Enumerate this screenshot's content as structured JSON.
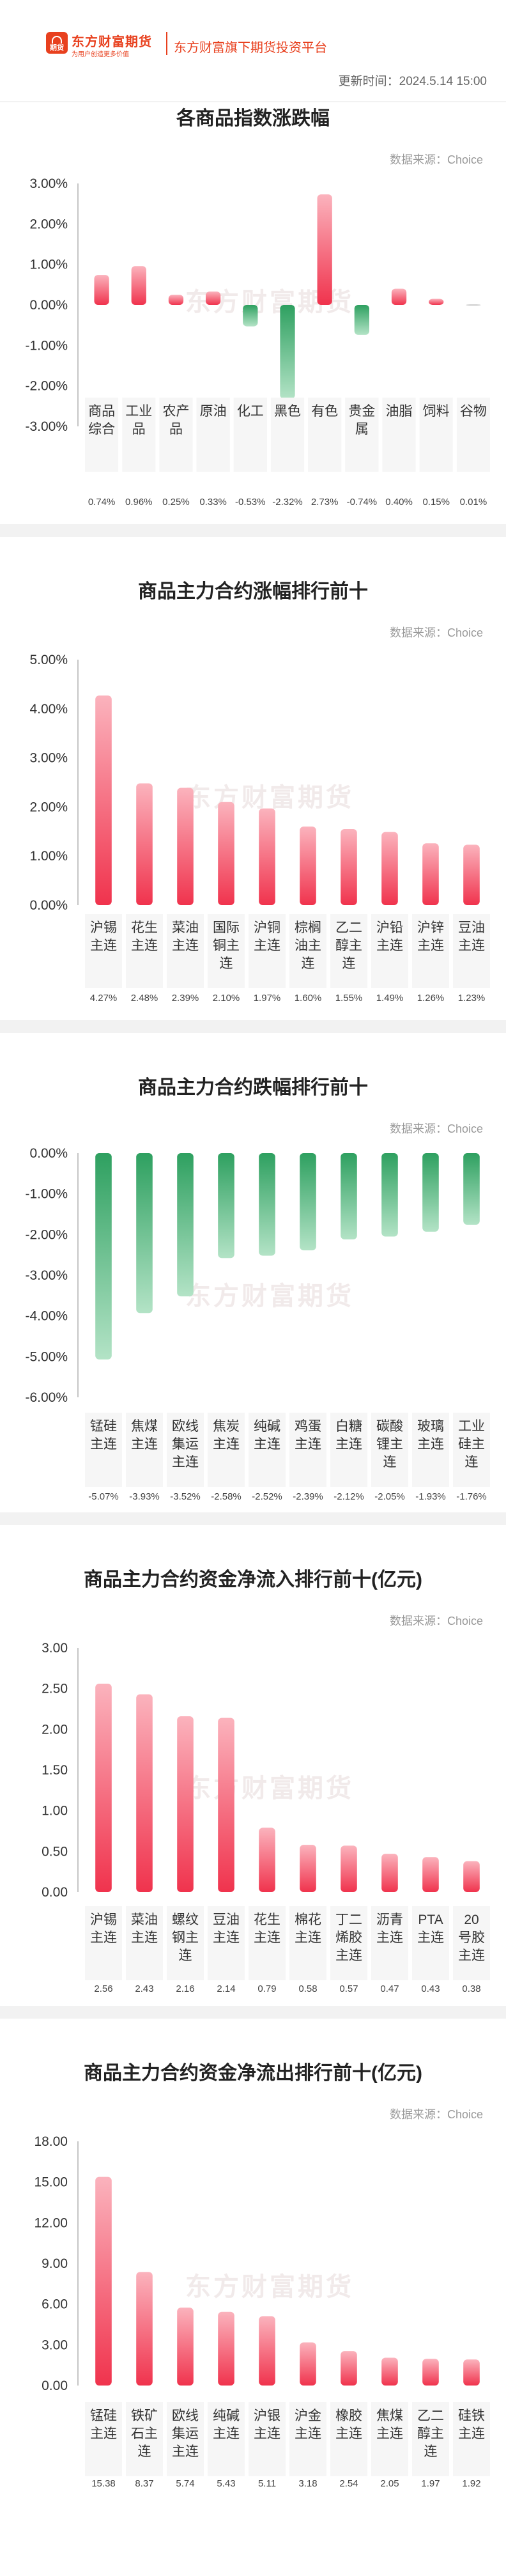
{
  "header": {
    "brand_name": "东方财富期货",
    "brand_tagline": "为用户创造更多价值",
    "logo_text": "期货",
    "platform_text": "东方财富旗下期货投资平台",
    "update_time": "更新时间：2024.5.14 15:00"
  },
  "watermark": "东方财富期货",
  "colors": {
    "up": "#f0334d",
    "down": "#2ea060",
    "neutral": "#bbbbbb"
  },
  "chart_data": [
    {
      "type": "bar",
      "title": "各商品指数涨跌幅",
      "source": "数据来源：Choice",
      "categories": [
        "商品综合",
        "工业品",
        "农产品",
        "原油",
        "化工",
        "黑色",
        "有色",
        "贵金属",
        "油脂",
        "饲料",
        "谷物"
      ],
      "values": [
        0.74,
        0.96,
        0.25,
        0.33,
        -0.53,
        -2.32,
        2.73,
        -0.74,
        0.4,
        0.15,
        0.01
      ],
      "value_labels": [
        "0.74%",
        "0.96%",
        "0.25%",
        "0.33%",
        "-0.53%",
        "-2.32%",
        "2.73%",
        "-0.74%",
        "0.40%",
        "0.15%",
        "0.01%"
      ],
      "ylim": [
        -3,
        3
      ],
      "yticks": [
        3,
        2,
        1,
        0,
        -1,
        -2,
        -3
      ],
      "ytick_labels": [
        "3.00%",
        "2.00%",
        "1.00%",
        "0.00%",
        "-1.00%",
        "-2.00%",
        "-3.00%"
      ],
      "grid": false
    },
    {
      "type": "bar",
      "title": "商品主力合约涨幅排行前十",
      "source": "数据来源：Choice",
      "categories": [
        "沪锡主连",
        "花生主连",
        "菜油主连",
        "国际铜主连",
        "沪铜主连",
        "棕榈油主连",
        "乙二醇主连",
        "沪铅主连",
        "沪锌主连",
        "豆油主连"
      ],
      "values": [
        4.27,
        2.48,
        2.39,
        2.1,
        1.97,
        1.6,
        1.55,
        1.49,
        1.26,
        1.23
      ],
      "value_labels": [
        "4.27%",
        "2.48%",
        "2.39%",
        "2.10%",
        "1.97%",
        "1.60%",
        "1.55%",
        "1.49%",
        "1.26%",
        "1.23%"
      ],
      "ylim": [
        0,
        5
      ],
      "yticks": [
        5,
        4,
        3,
        2,
        1,
        0
      ],
      "ytick_labels": [
        "5.00%",
        "4.00%",
        "3.00%",
        "2.00%",
        "1.00%",
        "0.00%"
      ],
      "grid": false
    },
    {
      "type": "bar",
      "title": "商品主力合约跌幅排行前十",
      "source": "数据来源：Choice",
      "categories": [
        "锰硅主连",
        "焦煤主连",
        "欧线集运主连",
        "焦炭主连",
        "纯碱主连",
        "鸡蛋主连",
        "白糖主连",
        "碳酸锂主连",
        "玻璃主连",
        "工业硅主连"
      ],
      "values": [
        -5.07,
        -3.93,
        -3.52,
        -2.58,
        -2.52,
        -2.39,
        -2.12,
        -2.05,
        -1.93,
        -1.76
      ],
      "value_labels": [
        "-5.07%",
        "-3.93%",
        "-3.52%",
        "-2.58%",
        "-2.52%",
        "-2.39%",
        "-2.12%",
        "-2.05%",
        "-1.93%",
        "-1.76%"
      ],
      "ylim": [
        -6,
        0
      ],
      "yticks": [
        0,
        -1,
        -2,
        -3,
        -4,
        -5,
        -6
      ],
      "ytick_labels": [
        "0.00%",
        "-1.00%",
        "-2.00%",
        "-3.00%",
        "-4.00%",
        "-5.00%",
        "-6.00%"
      ],
      "grid": false
    },
    {
      "type": "bar",
      "title": "商品主力合约资金净流入排行前十(亿元)",
      "source": "数据来源：Choice",
      "categories": [
        "沪锡主连",
        "菜油主连",
        "螺纹钢主连",
        "豆油主连",
        "花生主连",
        "棉花主连",
        "丁二烯胶主连",
        "沥青主连",
        "PTA主连",
        "20号胶主连"
      ],
      "values": [
        2.56,
        2.43,
        2.16,
        2.14,
        0.79,
        0.58,
        0.57,
        0.47,
        0.43,
        0.38
      ],
      "value_labels": [
        "2.56",
        "2.43",
        "2.16",
        "2.14",
        "0.79",
        "0.58",
        "0.57",
        "0.47",
        "0.43",
        "0.38"
      ],
      "ylim": [
        0,
        3
      ],
      "yticks": [
        3,
        2.5,
        2,
        1.5,
        1,
        0.5,
        0
      ],
      "ytick_labels": [
        "3.00",
        "2.50",
        "2.00",
        "1.50",
        "1.00",
        "0.50",
        "0.00"
      ],
      "grid": false
    },
    {
      "type": "bar",
      "title": "商品主力合约资金净流出排行前十(亿元)",
      "source": "数据来源：Choice",
      "categories": [
        "锰硅主连",
        "铁矿石主连",
        "欧线集运主连",
        "纯碱主连",
        "沪银主连",
        "沪金主连",
        "橡胶主连",
        "焦煤主连",
        "乙二醇主连",
        "硅铁主连"
      ],
      "values": [
        15.38,
        8.37,
        5.74,
        5.43,
        5.11,
        3.18,
        2.54,
        2.05,
        1.97,
        1.92
      ],
      "value_labels": [
        "15.38",
        "8.37",
        "5.74",
        "5.43",
        "5.11",
        "3.18",
        "2.54",
        "2.05",
        "1.97",
        "1.92"
      ],
      "ylim": [
        0,
        18
      ],
      "yticks": [
        18,
        15,
        12,
        9,
        6,
        3,
        0
      ],
      "ytick_labels": [
        "18.00",
        "15.00",
        "12.00",
        "9.00",
        "6.00",
        "3.00",
        "0.00"
      ],
      "grid": false
    }
  ]
}
